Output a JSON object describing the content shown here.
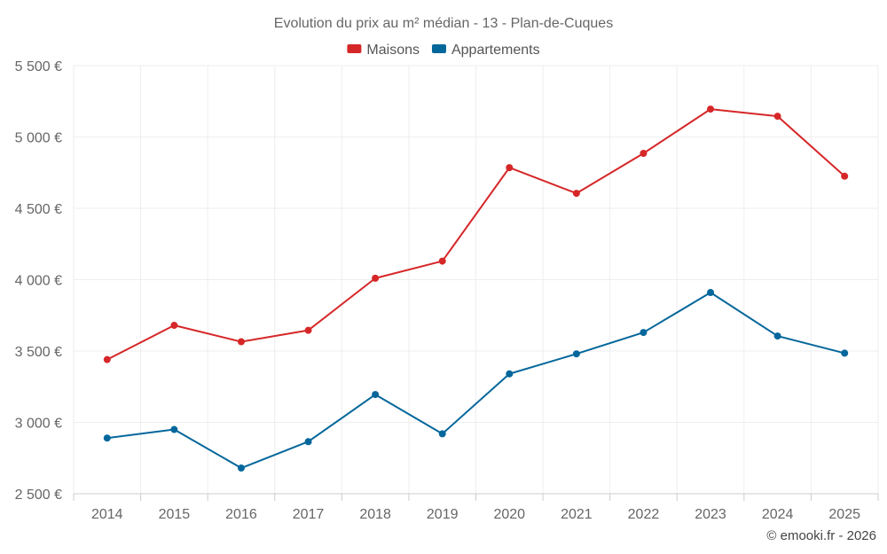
{
  "chart_data": {
    "type": "line",
    "title": "Evolution du prix au m² médian - 13 - Plan-de-Cuques",
    "categories": [
      "2014",
      "2015",
      "2016",
      "2017",
      "2018",
      "2019",
      "2020",
      "2021",
      "2022",
      "2023",
      "2024",
      "2025"
    ],
    "series": [
      {
        "name": "Maisons",
        "color": "#d62728",
        "values": [
          3440,
          3680,
          3565,
          3645,
          4010,
          4130,
          4785,
          4605,
          4885,
          5195,
          5145,
          4725
        ]
      },
      {
        "name": "Appartements",
        "color": "#04679b",
        "values": [
          2890,
          2950,
          2680,
          2865,
          3195,
          2920,
          3340,
          3480,
          3630,
          3910,
          3605,
          3485
        ]
      }
    ],
    "ylim": [
      2500,
      5500
    ],
    "yticks": [
      2500,
      3000,
      3500,
      4000,
      4500,
      5000,
      5500
    ],
    "ytick_labels": [
      "2 500 €",
      "3 000 €",
      "3 500 €",
      "4 000 €",
      "4 500 €",
      "5 000 €",
      "5 500 €"
    ],
    "xlabel": "",
    "ylabel": "",
    "grid": true,
    "legend": "top-center"
  },
  "credit": "© emooki.fr - 2026"
}
